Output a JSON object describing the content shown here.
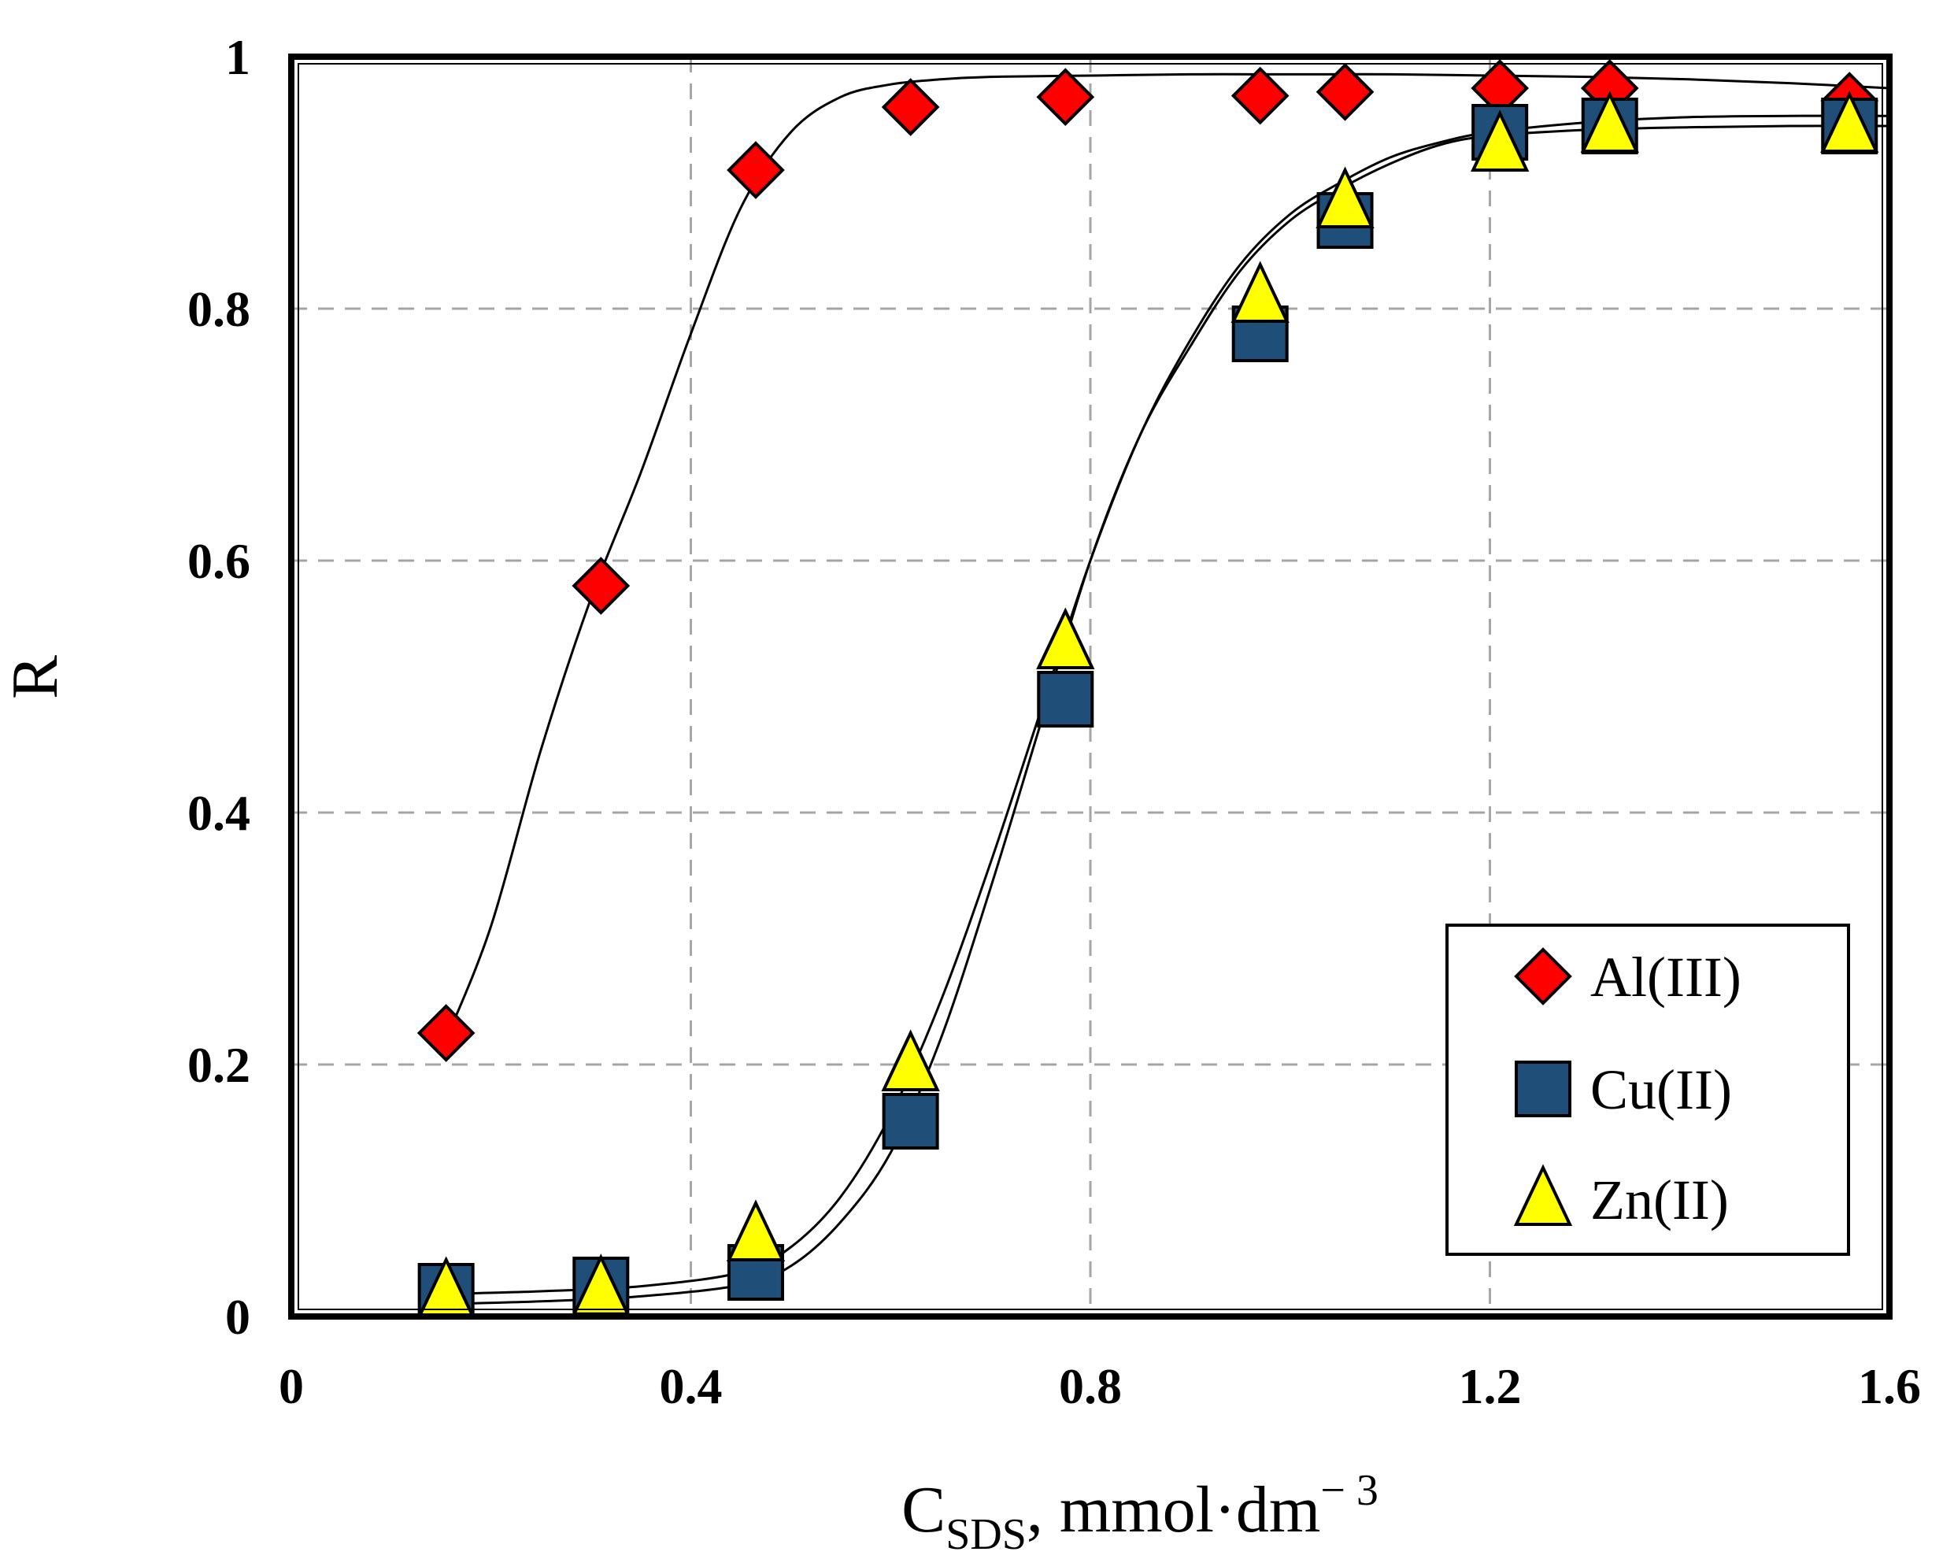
{
  "chart_data": {
    "type": "scatter",
    "title": "",
    "xlabel": {
      "main": "C",
      "subscript": "SDS",
      "unit": ", mmol·dm",
      "superscript": "− 3"
    },
    "ylabel": "R",
    "xlim": [
      0,
      1.6
    ],
    "ylim": [
      0,
      1
    ],
    "xticks": [
      0,
      0.4,
      0.8,
      1.2,
      1.6
    ],
    "xtick_labels": [
      "0",
      "0.4",
      "0.8",
      "1.2",
      "1.6"
    ],
    "yticks": [
      0,
      0.2,
      0.4,
      0.6,
      0.8,
      1
    ],
    "ytick_labels": [
      "0",
      "0.2",
      "0.4",
      "0.6",
      "0.8",
      "1"
    ],
    "grid": true,
    "legend_position": "bottom-right",
    "series": [
      {
        "name": "Al(III)",
        "marker": "diamond",
        "color": "#ff0000",
        "x": [
          0.155,
          0.31,
          0.465,
          0.62,
          0.775,
          0.97,
          1.055,
          1.21,
          1.32,
          1.56
        ],
        "y": [
          0.225,
          0.58,
          0.91,
          0.96,
          0.968,
          0.969,
          0.972,
          0.975,
          0.975,
          0.965
        ],
        "fit_x": [
          0.155,
          0.2,
          0.25,
          0.3,
          0.35,
          0.4,
          0.45,
          0.5,
          0.55,
          0.6,
          0.65,
          0.7,
          0.8,
          0.9,
          1.0,
          1.1,
          1.2,
          1.3,
          1.4,
          1.5,
          1.6
        ],
        "fit_y": [
          0.22,
          0.31,
          0.45,
          0.57,
          0.67,
          0.78,
          0.88,
          0.94,
          0.968,
          0.978,
          0.982,
          0.984,
          0.985,
          0.986,
          0.986,
          0.986,
          0.985,
          0.984,
          0.982,
          0.979,
          0.975
        ]
      },
      {
        "name": "Cu(II)",
        "marker": "square",
        "color": "#1f4e79",
        "x": [
          0.155,
          0.31,
          0.465,
          0.62,
          0.775,
          0.97,
          1.055,
          1.21,
          1.32,
          1.56
        ],
        "y": [
          0.02,
          0.025,
          0.035,
          0.155,
          0.49,
          0.78,
          0.87,
          0.94,
          0.945,
          0.945
        ],
        "fit_x": [
          0.155,
          0.25,
          0.35,
          0.45,
          0.5,
          0.55,
          0.6,
          0.65,
          0.7,
          0.75,
          0.8,
          0.85,
          0.9,
          0.95,
          1.0,
          1.05,
          1.1,
          1.15,
          1.2,
          1.3,
          1.4,
          1.5,
          1.6
        ],
        "fit_y": [
          0.01,
          0.012,
          0.016,
          0.025,
          0.04,
          0.075,
          0.13,
          0.22,
          0.34,
          0.47,
          0.6,
          0.7,
          0.77,
          0.83,
          0.87,
          0.895,
          0.915,
          0.93,
          0.937,
          0.942,
          0.944,
          0.945,
          0.945
        ]
      },
      {
        "name": "Zn(II)",
        "marker": "triangle",
        "color": "#ffff00",
        "x": [
          0.155,
          0.31,
          0.465,
          0.62,
          0.775,
          0.97,
          1.055,
          1.21,
          1.32,
          1.56
        ],
        "y": [
          0.02,
          0.022,
          0.065,
          0.2,
          0.535,
          0.81,
          0.885,
          0.93,
          0.945,
          0.945
        ],
        "fit_x": [
          0.155,
          0.25,
          0.35,
          0.45,
          0.5,
          0.55,
          0.6,
          0.65,
          0.7,
          0.75,
          0.8,
          0.85,
          0.9,
          0.95,
          1.0,
          1.05,
          1.1,
          1.15,
          1.2,
          1.3,
          1.4,
          1.5,
          1.6
        ],
        "fit_y": [
          0.018,
          0.02,
          0.024,
          0.035,
          0.055,
          0.095,
          0.16,
          0.25,
          0.36,
          0.48,
          0.6,
          0.7,
          0.775,
          0.835,
          0.875,
          0.9,
          0.92,
          0.932,
          0.94,
          0.948,
          0.952,
          0.953,
          0.953
        ]
      }
    ]
  }
}
